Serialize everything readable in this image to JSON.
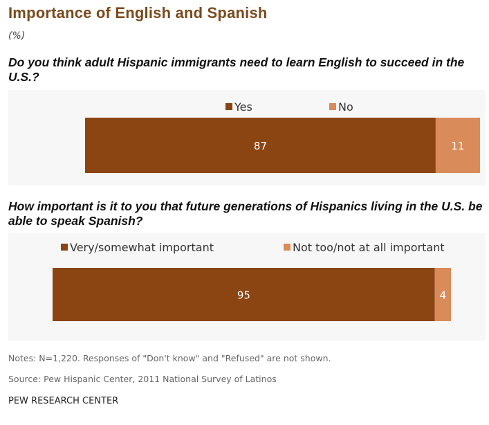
{
  "header": {
    "title": "Importance of English and Spanish",
    "subtitle": "(%)"
  },
  "chart_data": [
    {
      "type": "bar",
      "orientation": "horizontal",
      "stacked": true,
      "title": "Do you think adult Hispanic immigrants need to learn English to succeed in the U.S.?",
      "categories": [
        ""
      ],
      "series": [
        {
          "name": "Yes",
          "values": [
            87
          ],
          "color": "#8b4513"
        },
        {
          "name": "No",
          "values": [
            11
          ],
          "color": "#d98b5a"
        }
      ],
      "legend": "top"
    },
    {
      "type": "bar",
      "orientation": "horizontal",
      "stacked": true,
      "title": "How important is it to you that future generations of Hispanics living in the U.S. be able to speak Spanish?",
      "categories": [
        ""
      ],
      "series": [
        {
          "name": "Very/somewhat important",
          "values": [
            95
          ],
          "color": "#8b4513"
        },
        {
          "name": "Not too/not at all important",
          "values": [
            4
          ],
          "color": "#d98b5a"
        }
      ],
      "legend": "top"
    }
  ],
  "footer": {
    "notes": "Notes: N=1,220. Responses of \"Don't know\" and \"Refused\" are not shown.",
    "source": "Source: Pew Hispanic Center, 2011 National Survey of Latinos",
    "brand": "PEW RESEARCH CENTER"
  }
}
